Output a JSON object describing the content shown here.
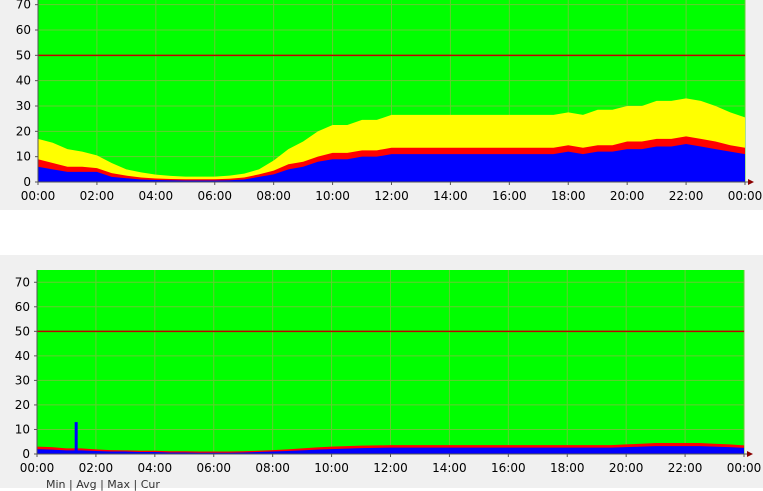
{
  "colors": {
    "plot_background": "#00ff00",
    "grid": "#66cc33",
    "threshold_line": "#c00000",
    "series_blue": "#0000ff",
    "series_red": "#ff0000",
    "series_yellow": "#ffff00",
    "axis": "#555555",
    "axis_arrow": "#8b0000"
  },
  "chart_data": [
    {
      "type": "area",
      "stacked": true,
      "title": "",
      "xlabel": "",
      "ylabel": "",
      "x_ticks": [
        "00:00",
        "02:00",
        "04:00",
        "06:00",
        "08:00",
        "10:00",
        "12:00",
        "14:00",
        "16:00",
        "18:00",
        "20:00",
        "22:00",
        "00:00"
      ],
      "y_ticks": [
        0,
        10,
        20,
        30,
        40,
        50,
        60,
        70
      ],
      "ylim": [
        0,
        75
      ],
      "grid": true,
      "threshold": 50,
      "hours": [
        0,
        0.5,
        1,
        1.5,
        2,
        2.5,
        3,
        3.5,
        4,
        4.5,
        5,
        5.5,
        6,
        6.5,
        7,
        7.5,
        8,
        8.5,
        9,
        9.5,
        10,
        10.5,
        11,
        11.5,
        12,
        12.5,
        13,
        13.5,
        14,
        14.5,
        15,
        15.5,
        16,
        16.5,
        17,
        17.5,
        18,
        18.5,
        19,
        19.5,
        20,
        20.5,
        21,
        21.5,
        22,
        22.5,
        23,
        23.5,
        24
      ],
      "series": [
        {
          "color": "#0000ff",
          "values": [
            6,
            5,
            4,
            4,
            4,
            2,
            1.5,
            1,
            0.8,
            0.7,
            0.6,
            0.6,
            0.6,
            0.7,
            1,
            2,
            3,
            5,
            6,
            8,
            9,
            9,
            10,
            10,
            11,
            11,
            11,
            11,
            11,
            11,
            11,
            11,
            11,
            11,
            11,
            11,
            12,
            11,
            12,
            12,
            13,
            13,
            14,
            14,
            15,
            14,
            13,
            12,
            11
          ]
        },
        {
          "color": "#ff0000",
          "values": [
            3,
            2.5,
            2,
            2,
            1.5,
            1.5,
            1,
            0.8,
            0.6,
            0.5,
            0.5,
            0.5,
            0.5,
            0.6,
            0.8,
            1,
            1.5,
            2,
            2,
            2,
            2.5,
            2.5,
            2.5,
            2.5,
            2.5,
            2.5,
            2.5,
            2.5,
            2.5,
            2.5,
            2.5,
            2.5,
            2.5,
            2.5,
            2.5,
            2.5,
            2.5,
            2.5,
            2.5,
            2.5,
            3,
            3,
            3,
            3,
            3,
            3,
            3,
            2.5,
            2.5
          ]
        },
        {
          "color": "#ffff00",
          "values": [
            8,
            8,
            7,
            6,
            5,
            4,
            2.5,
            2,
            1.5,
            1.2,
            1,
            1,
            1,
            1.2,
            1.5,
            2,
            4,
            6,
            8,
            10,
            11,
            11,
            12,
            12,
            13,
            13,
            13,
            13,
            13,
            13,
            13,
            13,
            13,
            13,
            13,
            13,
            13,
            13,
            14,
            14,
            14,
            14,
            15,
            15,
            15,
            15,
            14,
            13,
            12
          ]
        }
      ]
    },
    {
      "type": "area",
      "stacked": true,
      "title": "",
      "xlabel": "",
      "ylabel": "",
      "x_ticks": [
        "00:00",
        "02:00",
        "04:00",
        "06:00",
        "08:00",
        "10:00",
        "12:00",
        "14:00",
        "16:00",
        "18:00",
        "20:00",
        "22:00",
        "00:00"
      ],
      "y_ticks": [
        0,
        10,
        20,
        30,
        40,
        50,
        60,
        70
      ],
      "ylim": [
        0,
        75
      ],
      "grid": true,
      "threshold": 50,
      "hours": [
        0,
        0.5,
        1,
        1.5,
        2,
        2.5,
        3,
        3.5,
        4,
        4.5,
        5,
        5.5,
        6,
        6.5,
        7,
        7.5,
        8,
        8.5,
        9,
        9.5,
        10,
        10.5,
        11,
        11.5,
        12,
        12.5,
        13,
        13.5,
        14,
        14.5,
        15,
        15.5,
        16,
        16.5,
        17,
        17.5,
        18,
        18.5,
        19,
        19.5,
        20,
        20.5,
        21,
        21.5,
        22,
        22.5,
        23,
        23.5,
        24
      ],
      "spikes": [
        {
          "hour": 1.33,
          "value": 13
        }
      ],
      "series": [
        {
          "color": "#0000ff",
          "values": [
            2,
            1.8,
            1.5,
            1.5,
            1.2,
            1,
            1,
            0.8,
            0.8,
            0.6,
            0.6,
            0.5,
            0.5,
            0.5,
            0.6,
            0.8,
            1,
            1.2,
            1.5,
            1.8,
            2,
            2.2,
            2.4,
            2.5,
            2.6,
            2.6,
            2.6,
            2.6,
            2.6,
            2.6,
            2.6,
            2.6,
            2.6,
            2.6,
            2.6,
            2.6,
            2.6,
            2.6,
            2.6,
            2.6,
            2.8,
            3,
            3.2,
            3.2,
            3.2,
            3.2,
            3,
            2.8,
            2.5
          ]
        },
        {
          "color": "#ff0000",
          "values": [
            1,
            1,
            0.8,
            0.8,
            0.7,
            0.6,
            0.5,
            0.5,
            0.5,
            0.5,
            0.5,
            0.5,
            0.5,
            0.5,
            0.5,
            0.5,
            0.6,
            0.7,
            0.8,
            0.9,
            1,
            1,
            1,
            1,
            1,
            1,
            1,
            1,
            1,
            1,
            1,
            1,
            1,
            1,
            1,
            1,
            1,
            1,
            1,
            1,
            1.1,
            1.2,
            1.3,
            1.3,
            1.3,
            1.3,
            1.2,
            1.1,
            1
          ]
        }
      ]
    }
  ],
  "legend_text": "Min | Avg | Max | Cur"
}
